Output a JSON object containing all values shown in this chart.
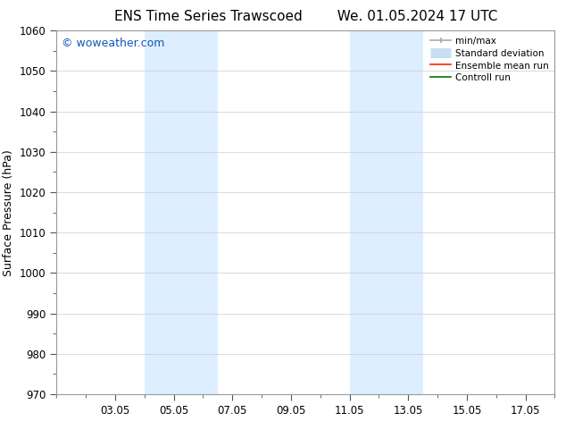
{
  "title_left": "ENS Time Series Trawscoed",
  "title_right": "We. 01.05.2024 17 UTC",
  "ylabel": "Surface Pressure (hPa)",
  "ylim": [
    970,
    1060
  ],
  "yticks": [
    970,
    980,
    990,
    1000,
    1010,
    1020,
    1030,
    1040,
    1050,
    1060
  ],
  "xlim": [
    0,
    17
  ],
  "xtick_labels": [
    "03.05",
    "05.05",
    "07.05",
    "09.05",
    "11.05",
    "13.05",
    "15.05",
    "17.05"
  ],
  "xtick_positions": [
    2,
    4,
    6,
    8,
    10,
    12,
    14,
    16
  ],
  "shaded_bands": [
    {
      "x_start": 3.0,
      "x_end": 5.5
    },
    {
      "x_start": 10.0,
      "x_end": 12.5
    }
  ],
  "shaded_color": "#ddeeff",
  "watermark_text": "© woweather.com",
  "watermark_color": "#1155bb",
  "bg_color": "#ffffff",
  "spine_color": "#999999",
  "grid_color": "#cccccc",
  "tick_color": "#555555",
  "title_fontsize": 11,
  "label_fontsize": 9,
  "tick_fontsize": 8.5,
  "watermark_fontsize": 9,
  "legend_fontsize": 7.5
}
